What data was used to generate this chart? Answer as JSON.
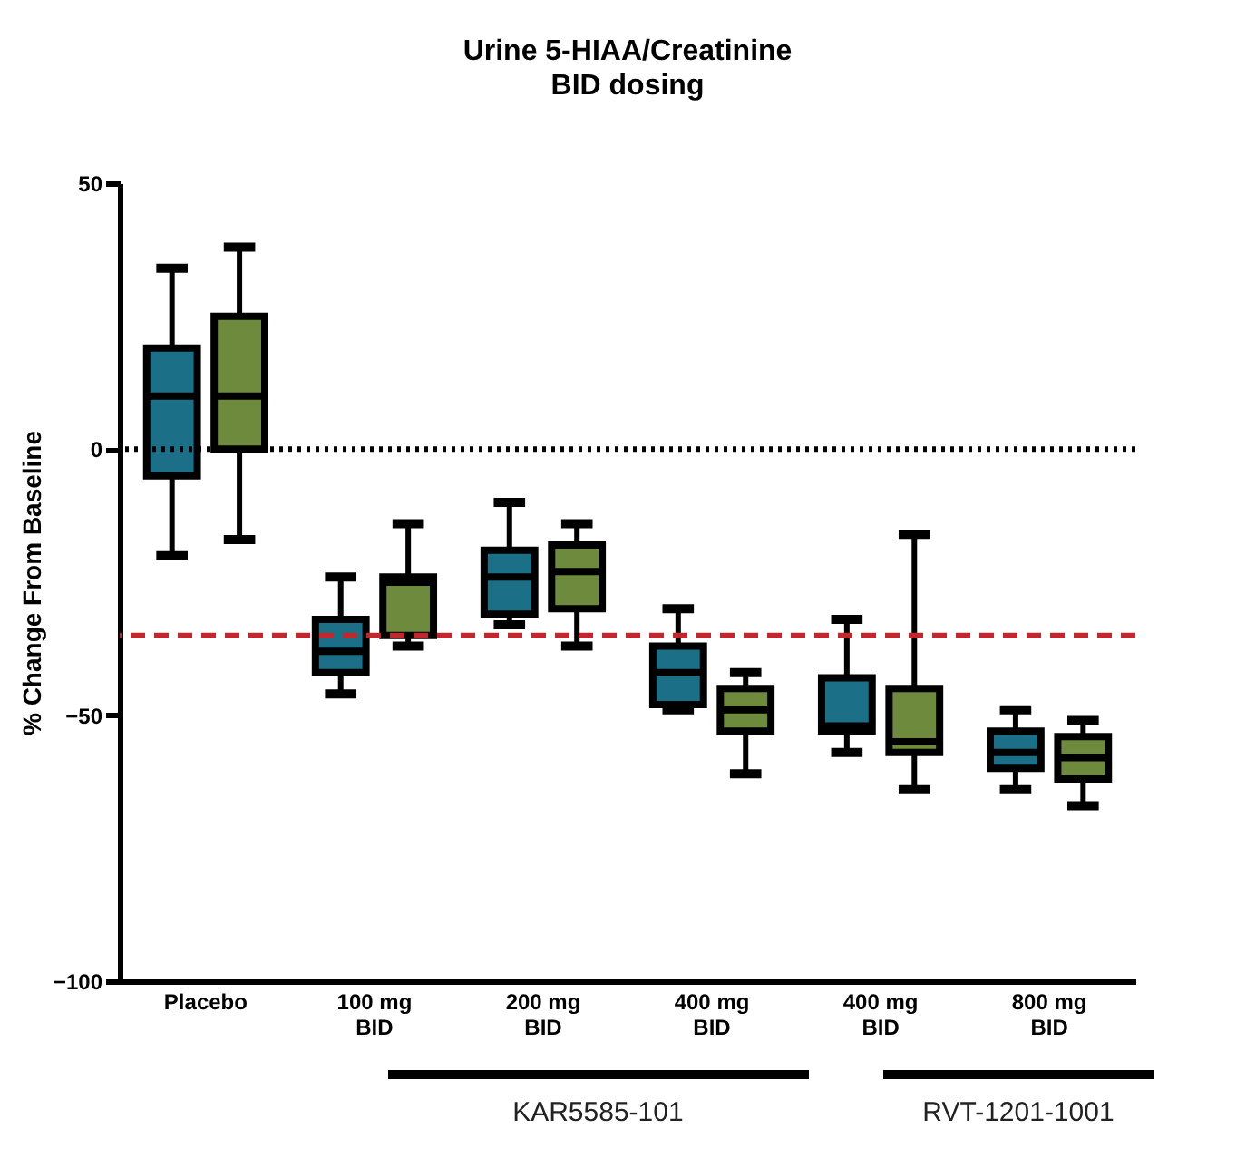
{
  "chart_data": {
    "type": "box",
    "title": "Urine 5-HIAA/Creatinine",
    "subtitle": "BID dosing",
    "ylabel": "% Change From Baseline",
    "categories": [
      "Placebo",
      "100 mg\nBID",
      "200 mg\nBID",
      "400 mg\nBID",
      "400 mg\nBID",
      "800 mg\nBID"
    ],
    "series": [
      {
        "color": "#1b6f86",
        "boxes": [
          {
            "low": -20,
            "q1": -5,
            "median": 10,
            "q3": 19,
            "high": 34
          },
          {
            "low": -46,
            "q1": -42,
            "median": -38,
            "q3": -32,
            "high": -24
          },
          {
            "low": -33,
            "q1": -31,
            "median": -24,
            "q3": -19,
            "high": -10
          },
          {
            "low": -49,
            "q1": -48,
            "median": -42,
            "q3": -37,
            "high": -30
          },
          {
            "low": -57,
            "q1": -53,
            "median": -52,
            "q3": -43,
            "high": -32
          },
          {
            "low": -64,
            "q1": -60,
            "median": -57,
            "q3": -53,
            "high": -49
          }
        ]
      },
      {
        "color": "#6e8b3d",
        "boxes": [
          {
            "low": -17,
            "q1": 0,
            "median": 10,
            "q3": 25,
            "high": 38
          },
          {
            "low": -37,
            "q1": -35,
            "median": -25,
            "q3": -24,
            "high": -14
          },
          {
            "low": -37,
            "q1": -30,
            "median": -23,
            "q3": -18,
            "high": -14
          },
          {
            "low": -61,
            "q1": -53,
            "median": -49,
            "q3": -45,
            "high": -42
          },
          {
            "low": -64,
            "q1": -57,
            "median": -55,
            "q3": -45,
            "high": -16
          },
          {
            "low": -67,
            "q1": -62,
            "median": -58,
            "q3": -54,
            "high": -51
          }
        ]
      }
    ],
    "ylim": [
      -100,
      50
    ],
    "yticks": [
      -100,
      -50,
      0,
      50
    ],
    "grid": false,
    "legend": false,
    "ref_lines": [
      {
        "axis": "y",
        "value": 0,
        "color": "#000000",
        "line_style": "dotted"
      },
      {
        "axis": "y",
        "value": -35,
        "color": "#c0282d",
        "line_style": "dashed"
      }
    ],
    "annotations": [
      "KAR5585-101",
      "RVT-1201-1001"
    ]
  }
}
